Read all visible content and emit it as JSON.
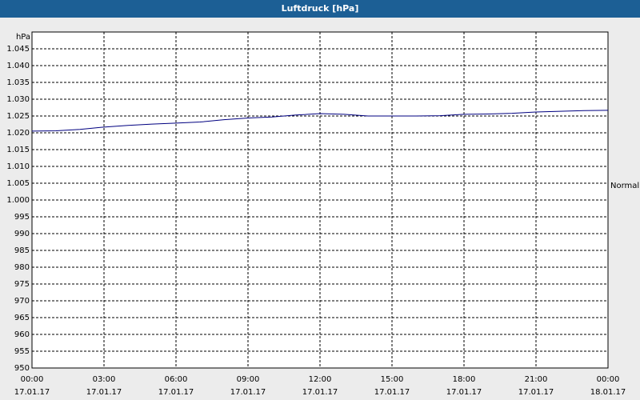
{
  "chart_data": {
    "type": "line",
    "title": "Luftdruck [hPa]",
    "y_label": "hPa",
    "annotation": "Normal",
    "x": [
      0,
      1,
      2,
      3,
      4,
      5,
      6,
      7,
      8,
      9,
      10,
      11,
      12,
      13,
      14,
      15,
      16,
      17,
      18,
      19,
      20,
      21,
      22,
      23,
      24
    ],
    "series": [
      {
        "name": "Luftdruck",
        "color": "#000080",
        "values": [
          1020.5,
          1020.6,
          1021.0,
          1021.7,
          1022.2,
          1022.6,
          1022.9,
          1023.2,
          1023.9,
          1024.4,
          1024.7,
          1025.3,
          1025.7,
          1025.5,
          1025.0,
          1025.0,
          1025.0,
          1025.1,
          1025.5,
          1025.6,
          1025.8,
          1026.2,
          1026.4,
          1026.6,
          1026.7
        ]
      }
    ],
    "xlim": [
      0,
      24
    ],
    "xticks": [
      {
        "value": 0,
        "label": "00:00"
      },
      {
        "value": 3,
        "label": "03:00"
      },
      {
        "value": 6,
        "label": "06:00"
      },
      {
        "value": 9,
        "label": "09:00"
      },
      {
        "value": 12,
        "label": "12:00"
      },
      {
        "value": 15,
        "label": "15:00"
      },
      {
        "value": 18,
        "label": "18:00"
      },
      {
        "value": 21,
        "label": "21:00"
      },
      {
        "value": 24,
        "label": "00:00"
      }
    ],
    "xtick_dates": [
      "17.01.17",
      "17.01.17",
      "17.01.17",
      "17.01.17",
      "17.01.17",
      "17.01.17",
      "17.01.17",
      "17.01.17",
      "18.01.17"
    ],
    "ylim": [
      950,
      1050
    ],
    "yticks": [
      950,
      955,
      960,
      965,
      970,
      975,
      980,
      985,
      990,
      995,
      {
        "value": 1000,
        "label": "1.000"
      },
      {
        "value": 1005,
        "label": "1.005"
      },
      {
        "value": 1010,
        "label": "1.010"
      },
      {
        "value": 1015,
        "label": "1.015"
      },
      {
        "value": 1020,
        "label": "1.020"
      },
      {
        "value": 1025,
        "label": "1.025"
      },
      {
        "value": 1030,
        "label": "1.030"
      },
      {
        "value": 1035,
        "label": "1.035"
      },
      {
        "value": 1040,
        "label": "1.040"
      },
      {
        "value": 1045,
        "label": "1.045"
      }
    ],
    "grid": true
  }
}
